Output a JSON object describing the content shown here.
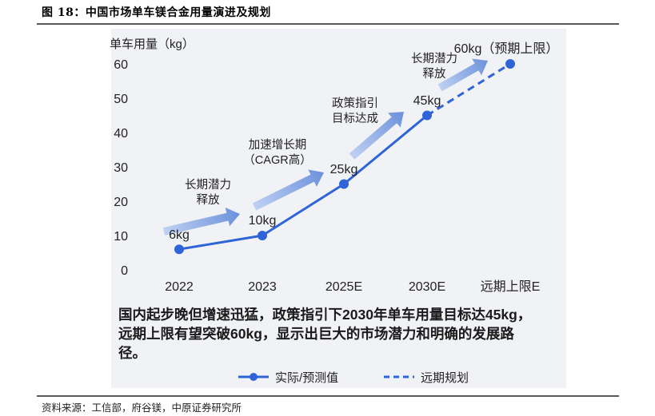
{
  "figure": {
    "title": "图 18：中国市场单车镁合金用量演进及规划",
    "source": "资料来源：工信部，府谷镁，中原证券研究所"
  },
  "colors": {
    "line": "#2f64d8",
    "arrow": "#6a8fd8",
    "text": "#222222",
    "panel": "#f1f2f5"
  },
  "chart_data": {
    "type": "line",
    "ylabel": "单车用量（kg）",
    "ylim": [
      0,
      60
    ],
    "yticks": [
      0,
      10,
      20,
      30,
      40,
      50,
      60
    ],
    "categories": [
      "2022",
      "2023",
      "2025E",
      "2030E",
      "远期上限E"
    ],
    "series": [
      {
        "name": "实际/预测值",
        "style": "solid",
        "x": [
          "2022",
          "2023",
          "2025E",
          "2030E"
        ],
        "values": [
          6,
          10,
          25,
          45
        ]
      },
      {
        "name": "远期规划",
        "style": "dashed",
        "x": [
          "2030E",
          "远期上限E"
        ],
        "values": [
          45,
          60
        ]
      }
    ],
    "data_labels": [
      "6kg",
      "10kg",
      "25kg",
      "45kg",
      "60kg（预期上限）"
    ],
    "annotations": [
      {
        "lines": [
          "长期潜力",
          "释放"
        ]
      },
      {
        "lines": [
          "加速增长期",
          "（CAGR高）"
        ]
      },
      {
        "lines": [
          "政策指引",
          "目标达成"
        ]
      },
      {
        "lines": [
          "长期潜力",
          "释放"
        ]
      }
    ],
    "summary_text": [
      "国内起步晚但增速迅猛，政策指引下2030年单车用量目标达45kg，",
      "远期上限有望突破60kg，显示出巨大的市场潜力和明确的发展路",
      "径。"
    ],
    "legend_position": "bottom-center",
    "grid": false
  }
}
